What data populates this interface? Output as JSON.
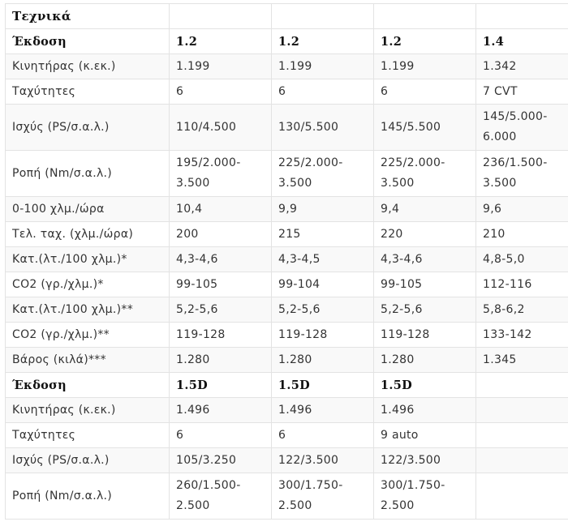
{
  "title": "Τεχνικά",
  "sections": [
    {
      "header": [
        "Έκδοση",
        "1.2",
        "1.2",
        "1.2",
        "1.4"
      ],
      "rows": [
        {
          "label": "Κινητήρας (κ.εκ.)",
          "values": [
            "1.199",
            "1.199",
            "1.199",
            "1.342"
          ]
        },
        {
          "label": "Ταχύτητες",
          "values": [
            "6",
            "6",
            "6",
            "7 CVT"
          ]
        },
        {
          "label": "Ισχύς (PS/σ.α.λ.)",
          "values": [
            "110/4.500",
            "130/5.500",
            "145/5.500",
            "145/5.000-6.000"
          ]
        },
        {
          "label": "Ροπή (Nm/σ.α.λ.)",
          "values": [
            "195/2.000-3.500",
            "225/2.000-3.500",
            "225/2.000-3.500",
            "236/1.500-3.500"
          ]
        },
        {
          "label": "0-100 χλμ./ώρα",
          "values": [
            "10,4",
            "9,9",
            "9,4",
            "9,6"
          ]
        },
        {
          "label": "Τελ. ταχ. (χλμ./ώρα)",
          "values": [
            "200",
            "215",
            "220",
            "210"
          ]
        },
        {
          "label": "Κατ.(λτ./100 χλμ.)*",
          "values": [
            "4,3-4,6",
            "4,3-4,5",
            "4,3-4,6",
            "4,8-5,0"
          ]
        },
        {
          "label": "CO2 (γρ./χλμ.)*",
          "values": [
            "99-105",
            "99-104",
            "99-105",
            "112-116"
          ]
        },
        {
          "label": "Κατ.(λτ./100 χλμ.)**",
          "values": [
            "5,2-5,6",
            "5,2-5,6",
            "5,2-5,6",
            "5,8-6,2"
          ]
        },
        {
          "label": "CO2 (γρ./χλμ.)**",
          "values": [
            "119-128",
            "119-128",
            "119-128",
            "133-142"
          ]
        },
        {
          "label": "Βάρος (κιλά)***",
          "values": [
            "1.280",
            "1.280",
            "1.280",
            "1.345"
          ]
        }
      ]
    },
    {
      "header": [
        "Έκδοση",
        "1.5D",
        "1.5D",
        "1.5D",
        ""
      ],
      "rows": [
        {
          "label": "Κινητήρας (κ.εκ.)",
          "values": [
            "1.496",
            "1.496",
            "1.496",
            ""
          ]
        },
        {
          "label": "Ταχύτητες",
          "values": [
            "6",
            "6",
            "9 auto",
            ""
          ]
        },
        {
          "label": "Ισχύς (PS/σ.α.λ.)",
          "values": [
            "105/3.250",
            "122/3.500",
            "122/3.500",
            ""
          ]
        },
        {
          "label": "Ροπή (Nm/σ.α.λ.)",
          "values": [
            "260/1.500-2.500",
            "300/1.750-2.500",
            "300/1.750-2.500",
            ""
          ]
        }
      ]
    }
  ]
}
